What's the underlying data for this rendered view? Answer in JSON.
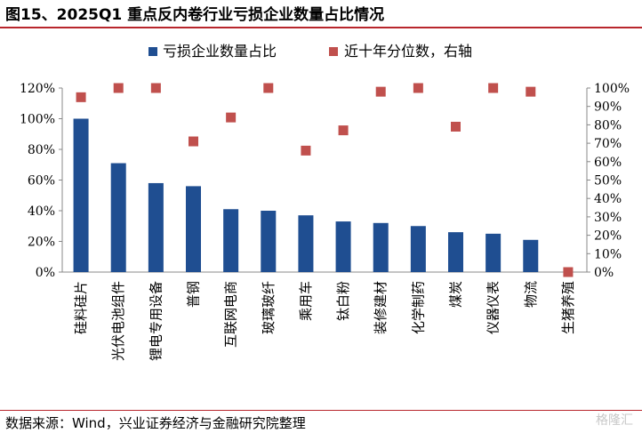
{
  "figure": {
    "title": "图15、2025Q1 重点反内卷行业亏损企业数量占比情况",
    "source": "数据来源：Wind，兴业证券经济与金融研究院整理",
    "watermark": "格隆汇"
  },
  "chart_data": {
    "type": "bar",
    "title": "图15、2025Q1 重点反内卷行业亏损企业数量占比情况",
    "categories": [
      "硅料硅片",
      "光伏电池组件",
      "锂电专用设备",
      "普钢",
      "互联网电商",
      "玻璃玻纤",
      "乘用车",
      "钛白粉",
      "装修建材",
      "化学制药",
      "煤炭",
      "仪器仪表",
      "物流",
      "生猪养殖"
    ],
    "series": [
      {
        "name": "亏损企业数量占比",
        "type": "bar",
        "axis": "left",
        "color": "#1f4e91",
        "values": [
          100,
          71,
          58,
          56,
          41,
          40,
          37,
          33,
          32,
          30,
          26,
          25,
          21,
          0
        ]
      },
      {
        "name": "近十年分位数，右轴",
        "type": "scatter",
        "axis": "right",
        "color": "#c0504d",
        "values": [
          95,
          100,
          100,
          71,
          84,
          100,
          66,
          77,
          98,
          100,
          79,
          100,
          98,
          0
        ]
      }
    ],
    "y_left": {
      "ylim": [
        0,
        120
      ],
      "ticks": [
        "0%",
        "20%",
        "40%",
        "60%",
        "80%",
        "100%",
        "120%"
      ]
    },
    "y_right": {
      "ylim": [
        0,
        100
      ],
      "ticks": [
        "0%",
        "10%",
        "20%",
        "30%",
        "40%",
        "50%",
        "60%",
        "70%",
        "80%",
        "90%",
        "100%"
      ]
    },
    "legend_position": "top",
    "grid": false
  }
}
